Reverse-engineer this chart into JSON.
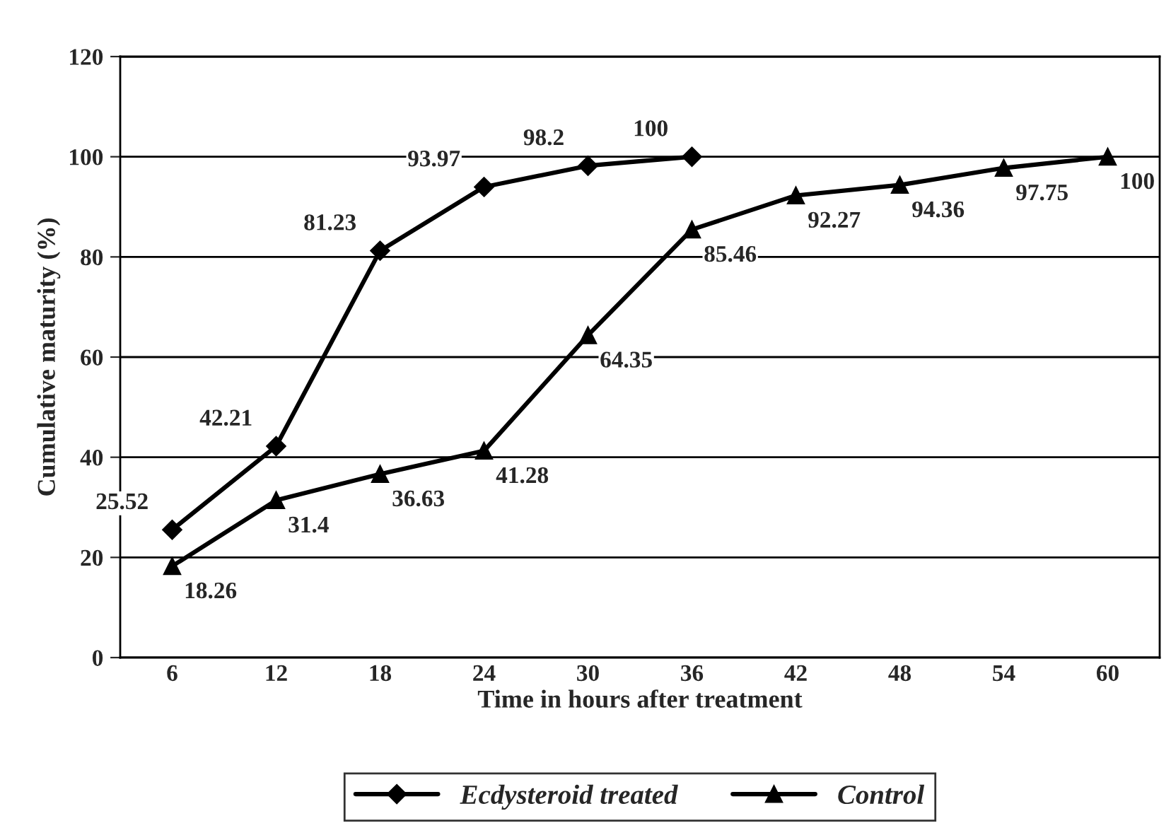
{
  "chart_data": {
    "type": "line",
    "xlabel": "Time in hours after treatment",
    "ylabel": "Cumulative maturity (%)",
    "categories": [
      "6",
      "12",
      "18",
      "24",
      "30",
      "36",
      "42",
      "48",
      "54",
      "60"
    ],
    "series": [
      {
        "name": "Ecdysteroid treated",
        "color": "#000000",
        "marker": "diamond",
        "values": [
          25.52,
          42.21,
          81.23,
          93.97,
          98.2,
          100,
          null,
          null,
          null,
          null
        ]
      },
      {
        "name": "Control",
        "color": "#000000",
        "marker": "triangle",
        "values": [
          18.26,
          31.4,
          36.63,
          41.28,
          64.35,
          85.46,
          92.27,
          94.36,
          97.75,
          100
        ]
      }
    ],
    "ylim": [
      0,
      120
    ],
    "yticks": [
      0,
      20,
      40,
      60,
      80,
      100,
      120
    ],
    "grid": "y",
    "legend": "bottom",
    "data_labels": true,
    "line_style": "solid"
  }
}
